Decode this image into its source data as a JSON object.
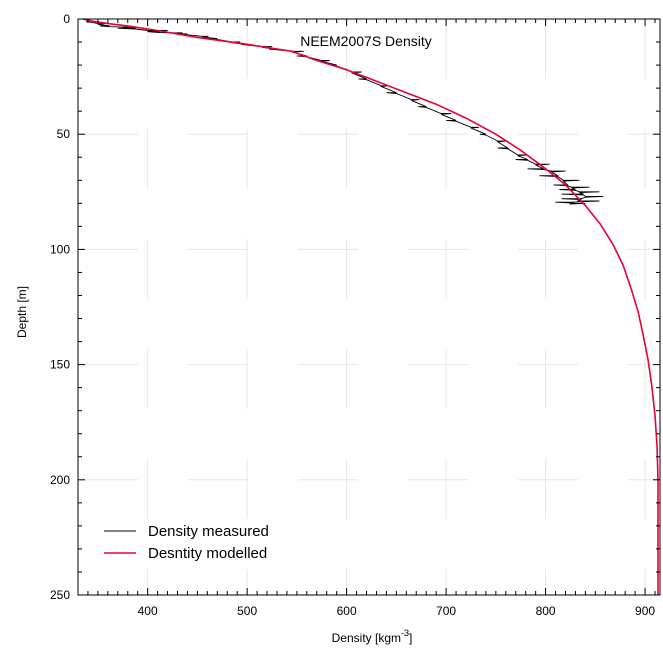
{
  "chart_data": {
    "type": "line",
    "title": "NEEM2007S Density",
    "xlabel": "Density [kgm",
    "xlabel_sup": "-3",
    "xlabel_suffix": "]",
    "ylabel": "Depth [m]",
    "xlim": [
      330,
      915
    ],
    "ylim": [
      0,
      250
    ],
    "y_inverted": true,
    "x_ticks": [
      400,
      500,
      600,
      700,
      800,
      900
    ],
    "y_ticks": [
      0,
      50,
      100,
      150,
      200,
      250
    ],
    "grid": true,
    "legend_position": "bottom-left",
    "series": [
      {
        "name": "Density measured",
        "color": "#000000",
        "x": [
          338,
          350,
          362,
          375,
          388,
          400,
          412,
          425,
          440,
          455,
          470,
          485,
          500,
          515,
          530,
          545,
          560,
          575,
          590,
          605,
          620,
          635,
          650,
          665,
          680,
          695,
          710,
          725,
          740,
          752,
          762,
          772,
          782,
          790,
          798,
          806,
          812,
          818,
          822,
          826,
          830,
          834,
          838,
          840,
          836,
          832,
          828,
          824
        ],
        "y": [
          1,
          2,
          3,
          3.5,
          4,
          5,
          5.5,
          6,
          6.5,
          7.5,
          8.5,
          10,
          11,
          12,
          13,
          14,
          16,
          18,
          20,
          23,
          26,
          29,
          32,
          35,
          38,
          41,
          44,
          47,
          50,
          53,
          56,
          59,
          61,
          63,
          65,
          66,
          68,
          70,
          72,
          73,
          74,
          75,
          76,
          77,
          78,
          79,
          79.5,
          80
        ],
        "noise": [
          0,
          8,
          -10,
          14,
          -18,
          20,
          -12,
          10,
          -8,
          6,
          -10,
          8,
          -6,
          10,
          -8,
          12,
          -10,
          8,
          -6,
          10,
          -8,
          6,
          -10,
          8,
          -8,
          10,
          -10,
          8,
          -6,
          8,
          -10,
          10,
          -12,
          14,
          -16,
          14,
          -18,
          16,
          -14,
          18,
          -16,
          20,
          -22,
          18,
          -20,
          22,
          -18,
          16
        ]
      },
      {
        "name": "Desntity modelled",
        "color": "#e8003a",
        "x": [
          335,
          345,
          360,
          380,
          410,
          450,
          500,
          545,
          570,
          600,
          630,
          660,
          690,
          720,
          750,
          775,
          800,
          820,
          840,
          855,
          868,
          878,
          886,
          893,
          898,
          903,
          907,
          910,
          912,
          913,
          913,
          913
        ],
        "y": [
          0,
          1,
          2,
          3,
          5,
          8,
          11,
          14,
          18,
          22,
          27,
          32,
          37,
          43,
          50,
          57,
          65,
          72,
          81,
          89,
          98,
          107,
          117,
          127,
          137,
          148,
          160,
          172,
          185,
          200,
          225,
          250
        ]
      }
    ]
  }
}
